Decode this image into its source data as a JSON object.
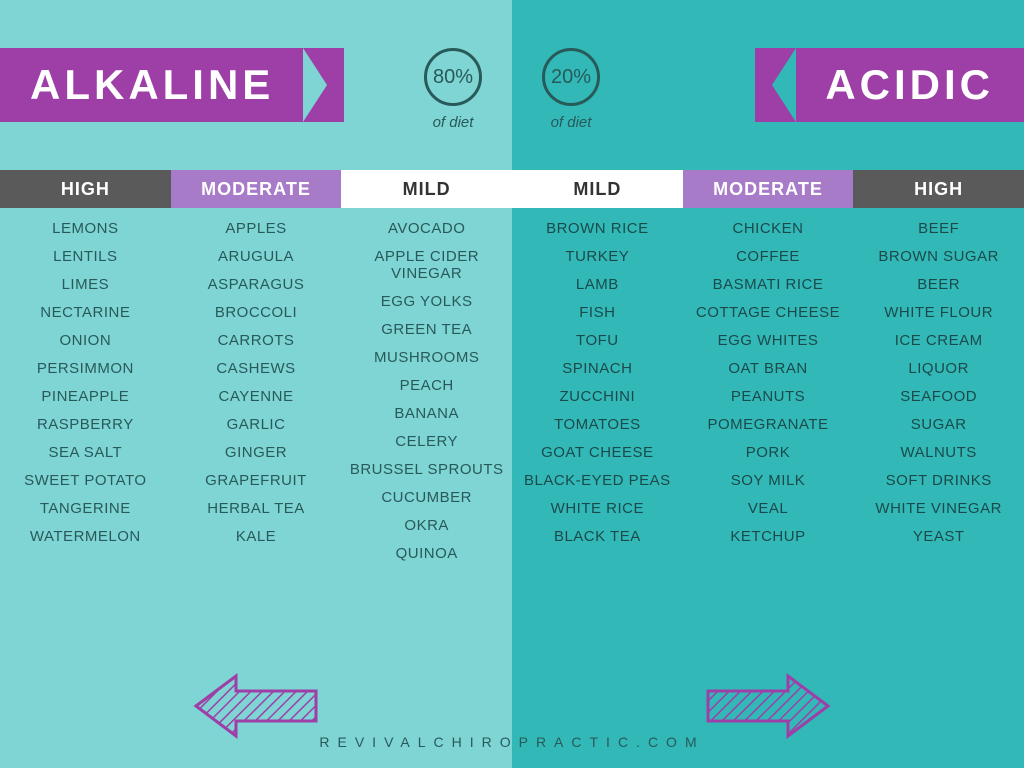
{
  "left": {
    "banner": "ALKALINE",
    "pct_value": "80%",
    "pct_label": "of diet",
    "headers": {
      "high": "HIGH",
      "mod": "MODERATE",
      "mild": "MILD"
    },
    "cols": {
      "high": [
        "LEMONS",
        "LENTILS",
        "LIMES",
        "NECTARINE",
        "ONION",
        "PERSIMMON",
        "PINEAPPLE",
        "RASPBERRY",
        "SEA SALT",
        "SWEET POTATO",
        "TANGERINE",
        "WATERMELON"
      ],
      "mod": [
        "APPLES",
        "ARUGULA",
        "ASPARAGUS",
        "BROCCOLI",
        "CARROTS",
        "CASHEWS",
        "CAYENNE",
        "GARLIC",
        "GINGER",
        "GRAPEFRUIT",
        "HERBAL TEA",
        "KALE"
      ],
      "mild": [
        "AVOCADO",
        "APPLE CIDER VINEGAR",
        "EGG YOLKS",
        "GREEN TEA",
        "MUSHROOMS",
        "PEACH",
        "BANANA",
        "CELERY",
        "BRUSSEL SPROUTS",
        "CUCUMBER",
        "OKRA",
        "QUINOA"
      ]
    }
  },
  "right": {
    "banner": "ACIDIC",
    "pct_value": "20%",
    "pct_label": "of diet",
    "headers": {
      "high": "HIGH",
      "mod": "MODERATE",
      "mild": "MILD"
    },
    "cols": {
      "mild": [
        "BROWN RICE",
        "TURKEY",
        "LAMB",
        "FISH",
        "TOFU",
        "SPINACH",
        "ZUCCHINI",
        "TOMATOES",
        "GOAT CHEESE",
        "BLACK-EYED PEAS",
        "WHITE RICE",
        "BLACK TEA"
      ],
      "mod": [
        "CHICKEN",
        "COFFEE",
        "BASMATI RICE",
        "COTTAGE CHEESE",
        "EGG WHITES",
        "OAT BRAN",
        "PEANUTS",
        "POMEGRANATE",
        "PORK",
        "SOY MILK",
        "VEAL",
        "KETCHUP"
      ],
      "high": [
        "BEEF",
        "BROWN SUGAR",
        "BEER",
        "WHITE FLOUR",
        "ICE CREAM",
        "LIQUOR",
        "SEAFOOD",
        "SUGAR",
        "WALNUTS",
        "SOFT DRINKS",
        "WHITE VINEGAR",
        "YEAST"
      ]
    }
  },
  "footer": "REVIVALCHIROPRACTIC.COM",
  "colors": {
    "left_bg": "#7fd4d4",
    "right_bg": "#33b8b8",
    "banner_purple": "#9e3fa8",
    "header_high": "#5a5a5a",
    "header_mod": "#a87bc9",
    "header_mild": "#ffffff",
    "text_dark": "#285a5a",
    "arrow_stroke": "#9e3fa8"
  }
}
